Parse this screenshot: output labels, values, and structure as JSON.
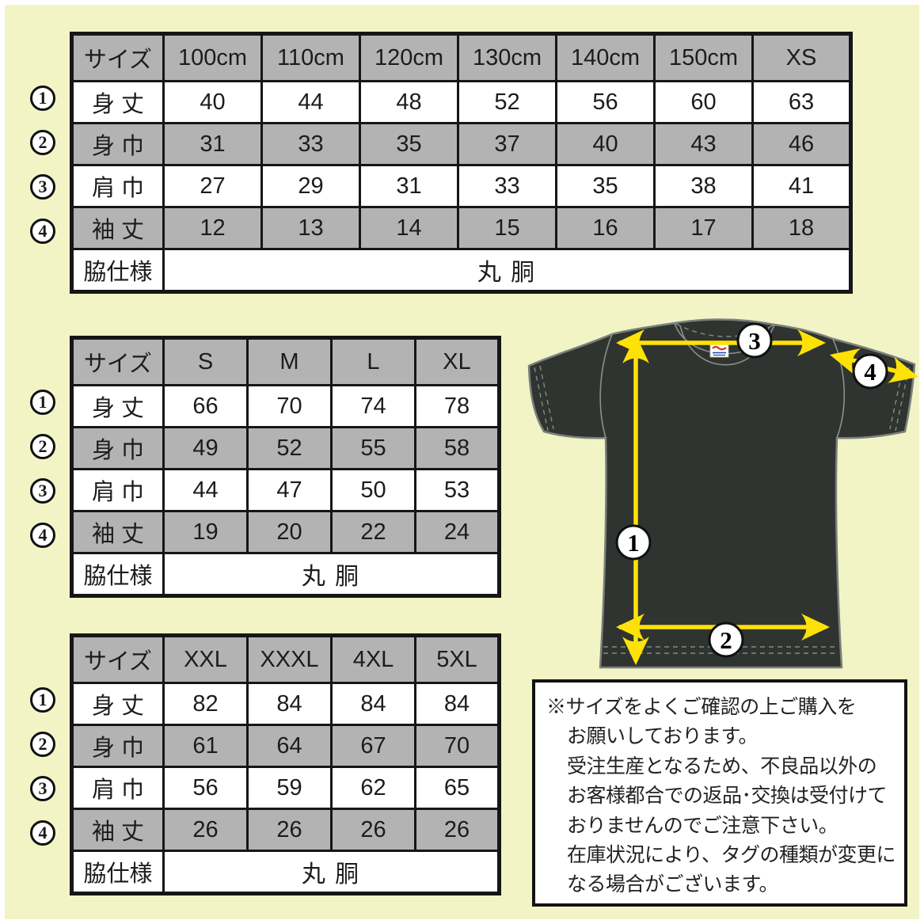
{
  "page": {
    "background": "#f2f4c6",
    "frame": "#ffffff"
  },
  "colors": {
    "table_gray": "#b3b3b3",
    "table_border": "#161616",
    "shirt_body": "#2f3431",
    "shirt_outline": "#7a807b",
    "seam_gray": "#9aa09b",
    "arrow_yellow": "#ffe205",
    "callout_bg": "#ffffff",
    "callout_border": "#111111"
  },
  "tables": [
    {
      "name": "kids",
      "size_header": "サイズ",
      "columns": [
        "100cm",
        "110cm",
        "120cm",
        "130cm",
        "140cm",
        "150cm",
        "XS"
      ],
      "rows": [
        {
          "circle": "1",
          "label": "身 丈",
          "values": [
            "40",
            "44",
            "48",
            "52",
            "56",
            "60",
            "63"
          ]
        },
        {
          "circle": "2",
          "label": "身 巾",
          "values": [
            "31",
            "33",
            "35",
            "37",
            "40",
            "43",
            "46"
          ]
        },
        {
          "circle": "3",
          "label": "肩 巾",
          "values": [
            "27",
            "29",
            "31",
            "33",
            "35",
            "38",
            "41"
          ]
        },
        {
          "circle": "4",
          "label": "袖 丈",
          "values": [
            "12",
            "13",
            "14",
            "15",
            "16",
            "17",
            "18"
          ]
        }
      ],
      "footer": {
        "label": "脇仕様",
        "value": "丸 胴"
      }
    },
    {
      "name": "adult",
      "size_header": "サイズ",
      "columns": [
        "S",
        "M",
        "L",
        "XL"
      ],
      "rows": [
        {
          "circle": "1",
          "label": "身 丈",
          "values": [
            "66",
            "70",
            "74",
            "78"
          ]
        },
        {
          "circle": "2",
          "label": "身 巾",
          "values": [
            "49",
            "52",
            "55",
            "58"
          ]
        },
        {
          "circle": "3",
          "label": "肩 巾",
          "values": [
            "44",
            "47",
            "50",
            "53"
          ]
        },
        {
          "circle": "4",
          "label": "袖 丈",
          "values": [
            "19",
            "20",
            "22",
            "24"
          ]
        }
      ],
      "footer": {
        "label": "脇仕様",
        "value": "丸 胴"
      }
    },
    {
      "name": "big",
      "size_header": "サイズ",
      "columns": [
        "XXL",
        "XXXL",
        "4XL",
        "5XL"
      ],
      "rows": [
        {
          "circle": "1",
          "label": "身 丈",
          "values": [
            "82",
            "84",
            "84",
            "84"
          ]
        },
        {
          "circle": "2",
          "label": "身 巾",
          "values": [
            "61",
            "64",
            "67",
            "70"
          ]
        },
        {
          "circle": "3",
          "label": "肩 巾",
          "values": [
            "56",
            "59",
            "62",
            "65"
          ]
        },
        {
          "circle": "4",
          "label": "袖 丈",
          "values": [
            "26",
            "26",
            "26",
            "26"
          ]
        }
      ],
      "footer": {
        "label": "脇仕様",
        "value": "丸 胴"
      }
    }
  ],
  "diagram": {
    "callouts": [
      "1",
      "2",
      "3",
      "4"
    ],
    "tag_icon": "brand-neck-tag"
  },
  "notice": {
    "lines": [
      "※サイズをよくご確認の上ご購入を",
      "お願いしております。",
      "受注生産となるため、不良品以外の",
      "お客様都合での返品･交換は受付けて",
      "おりませんのでご注意下さい。",
      "在庫状況により、タグの種類が変更に",
      "なる場合がございます。"
    ]
  }
}
